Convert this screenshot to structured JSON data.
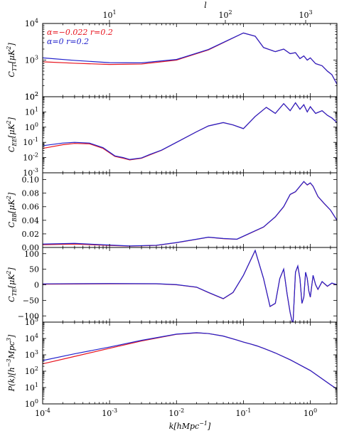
{
  "colors": {
    "red": "#e8141e",
    "blue": "#2222cc"
  },
  "top_axis": {
    "label": "l",
    "ticks": [
      {
        "base": "10",
        "exp": "1",
        "value": 10
      },
      {
        "base": "10",
        "exp": "2",
        "value": 100
      },
      {
        "base": "10",
        "exp": "3",
        "value": 1000
      }
    ]
  },
  "legend": [
    {
      "text": "α=−0.022 r=0.2",
      "color": "#e8141e"
    },
    {
      "text": "α=0 r=0.2",
      "color": "#2222cc"
    }
  ],
  "chart_data": [
    {
      "type": "line",
      "panel": "TT",
      "ylabel": "C_TT[μK²]",
      "yscale": "log",
      "ylim": [
        100,
        10000
      ],
      "xlim": [
        0.0001,
        2.5
      ],
      "x": [
        0.0001,
        0.0003,
        0.001,
        0.003,
        0.01,
        0.03,
        0.06,
        0.1,
        0.15,
        0.2,
        0.3,
        0.4,
        0.5,
        0.6,
        0.7,
        0.8,
        0.9,
        1.0,
        1.2,
        1.5,
        1.8,
        2.1,
        2.5
      ],
      "series": [
        {
          "color": "#e8141e",
          "values": [
            900,
            820,
            760,
            780,
            1000,
            1900,
            3500,
            5500,
            4500,
            2200,
            1700,
            2000,
            1500,
            1600,
            1100,
            1300,
            1000,
            1150,
            800,
            700,
            500,
            400,
            220
          ]
        },
        {
          "color": "#2222cc",
          "values": [
            1150,
            980,
            850,
            840,
            1040,
            1950,
            3550,
            5500,
            4500,
            2200,
            1700,
            2000,
            1500,
            1600,
            1100,
            1300,
            1000,
            1150,
            800,
            700,
            500,
            400,
            220
          ]
        }
      ],
      "ticks": [
        {
          "base": "10",
          "exp": "2",
          "value": 100
        },
        {
          "base": "10",
          "exp": "3",
          "value": 1000
        },
        {
          "base": "10",
          "exp": "4",
          "value": 10000
        }
      ]
    },
    {
      "type": "line",
      "panel": "EE",
      "ylabel": "C_EE[μK²]",
      "yscale": "log",
      "ylim": [
        0.001,
        100
      ],
      "xlim": [
        0.0001,
        2.5
      ],
      "x": [
        0.0001,
        0.0002,
        0.0003,
        0.0005,
        0.0008,
        0.0012,
        0.0016,
        0.002,
        0.003,
        0.004,
        0.006,
        0.01,
        0.02,
        0.03,
        0.05,
        0.07,
        0.1,
        0.15,
        0.22,
        0.3,
        0.4,
        0.5,
        0.6,
        0.7,
        0.8,
        0.9,
        1.0,
        1.2,
        1.5,
        1.8,
        2.1,
        2.5
      ],
      "series": [
        {
          "color": "#e8141e",
          "values": [
            0.04,
            0.07,
            0.085,
            0.08,
            0.04,
            0.012,
            0.009,
            0.007,
            0.009,
            0.015,
            0.03,
            0.1,
            0.5,
            1.2,
            2.0,
            1.4,
            0.8,
            5,
            20,
            8,
            35,
            12,
            40,
            15,
            30,
            10,
            22,
            8,
            12,
            6,
            4,
            2
          ]
        },
        {
          "color": "#2222cc",
          "values": [
            0.06,
            0.09,
            0.1,
            0.09,
            0.045,
            0.013,
            0.01,
            0.0075,
            0.0095,
            0.016,
            0.031,
            0.1,
            0.5,
            1.2,
            2.0,
            1.4,
            0.8,
            5,
            20,
            8,
            35,
            12,
            40,
            15,
            30,
            10,
            22,
            8,
            12,
            6,
            4,
            2
          ]
        }
      ],
      "ticks": [
        {
          "base": "10",
          "exp": "-3",
          "value": 0.001
        },
        {
          "base": "10",
          "exp": "-2",
          "value": 0.01
        },
        {
          "base": "10",
          "exp": "-1",
          "value": 0.1
        },
        {
          "base": "10",
          "exp": "0",
          "value": 1
        },
        {
          "base": "10",
          "exp": "1",
          "value": 10
        },
        {
          "base": "10",
          "exp": "2",
          "value": 100
        }
      ]
    },
    {
      "type": "line",
      "panel": "BB",
      "ylabel": "C_BB[μK²]",
      "yscale": "linear",
      "ylim": [
        0.0,
        0.11
      ],
      "xlim": [
        0.0001,
        2.5
      ],
      "x": [
        0.0001,
        0.0003,
        0.001,
        0.002,
        0.005,
        0.01,
        0.02,
        0.03,
        0.05,
        0.08,
        0.12,
        0.2,
        0.3,
        0.4,
        0.5,
        0.6,
        0.7,
        0.8,
        0.9,
        1.0,
        1.1,
        1.3,
        1.6,
        2.0,
        2.5
      ],
      "series": [
        {
          "color": "#e8141e",
          "values": [
            0.004,
            0.005,
            0.003,
            0.002,
            0.003,
            0.007,
            0.012,
            0.015,
            0.013,
            0.012,
            0.02,
            0.03,
            0.045,
            0.06,
            0.078,
            0.082,
            0.09,
            0.097,
            0.092,
            0.095,
            0.09,
            0.075,
            0.065,
            0.055,
            0.04
          ]
        },
        {
          "color": "#2222cc",
          "values": [
            0.005,
            0.006,
            0.0035,
            0.0022,
            0.0032,
            0.0072,
            0.0122,
            0.0152,
            0.0132,
            0.0122,
            0.0202,
            0.0302,
            0.0452,
            0.0602,
            0.0782,
            0.0822,
            0.0902,
            0.0972,
            0.0922,
            0.0952,
            0.0902,
            0.0752,
            0.0652,
            0.0552,
            0.0402
          ]
        }
      ],
      "ticks": [
        {
          "label": "0.00",
          "value": 0.0
        },
        {
          "label": "0.02",
          "value": 0.02
        },
        {
          "label": "0.04",
          "value": 0.04
        },
        {
          "label": "0.06",
          "value": 0.06
        },
        {
          "label": "0.08",
          "value": 0.08
        },
        {
          "label": "0.10",
          "value": 0.1
        }
      ]
    },
    {
      "type": "line",
      "panel": "TE",
      "ylabel": "C_TE[μK²]",
      "yscale": "linear",
      "ylim": [
        -120,
        120
      ],
      "xlim": [
        0.0001,
        2.5
      ],
      "x": [
        0.0001,
        0.001,
        0.005,
        0.01,
        0.02,
        0.03,
        0.05,
        0.07,
        0.1,
        0.15,
        0.2,
        0.25,
        0.3,
        0.35,
        0.4,
        0.45,
        0.5,
        0.55,
        0.6,
        0.65,
        0.7,
        0.75,
        0.8,
        0.85,
        0.9,
        0.95,
        1.0,
        1.1,
        1.2,
        1.3,
        1.5,
        1.8,
        2.1,
        2.5
      ],
      "series": [
        {
          "color": "#e8141e",
          "values": [
            2,
            3,
            3,
            0,
            -8,
            -25,
            -45,
            -25,
            30,
            110,
            20,
            -70,
            -60,
            20,
            50,
            -30,
            -90,
            -130,
            40,
            60,
            20,
            -60,
            -40,
            40,
            20,
            -20,
            -40,
            30,
            0,
            -15,
            10,
            -5,
            5,
            0
          ]
        },
        {
          "color": "#2222cc",
          "values": [
            3,
            4,
            3.5,
            0.5,
            -7.5,
            -24.5,
            -44.5,
            -24.5,
            30.5,
            110.5,
            20.5,
            -69.5,
            -59.5,
            20.5,
            50.5,
            -29.5,
            -89.5,
            -129.5,
            40.5,
            60.5,
            20.5,
            -59.5,
            -39.5,
            40.5,
            20.5,
            -19.5,
            -39.5,
            30.5,
            0.5,
            -14.5,
            10.5,
            -4.5,
            5.5,
            0.5
          ]
        }
      ],
      "ticks": [
        {
          "label": "−100",
          "value": -100
        },
        {
          "label": "−50",
          "value": -50
        },
        {
          "label": "0",
          "value": 0
        },
        {
          "label": "50",
          "value": 50
        },
        {
          "label": "100",
          "value": 100
        }
      ]
    },
    {
      "type": "line",
      "panel": "Pk",
      "ylabel": "P(k)[h⁻³Mpc³]",
      "yscale": "log",
      "ylim": [
        1,
        100000
      ],
      "xlim": [
        0.0001,
        2.5
      ],
      "xlabel": "k[hMpc⁻¹]",
      "x": [
        0.0001,
        0.0003,
        0.001,
        0.003,
        0.01,
        0.02,
        0.03,
        0.05,
        0.08,
        0.1,
        0.13,
        0.16,
        0.2,
        0.3,
        0.5,
        1.0,
        2.0,
        2.5
      ],
      "series": [
        {
          "color": "#e8141e",
          "values": [
            280,
            800,
            2500,
            7000,
            18000,
            22000,
            20000,
            14000,
            8000,
            6000,
            4500,
            3500,
            2500,
            1300,
            500,
            110,
            15,
            8
          ]
        },
        {
          "color": "#2222cc",
          "values": [
            450,
            1150,
            3000,
            7700,
            18500,
            22500,
            20000,
            14000,
            8000,
            6000,
            4500,
            3500,
            2500,
            1300,
            500,
            110,
            15,
            8
          ]
        }
      ],
      "ticks": [
        {
          "base": "10",
          "exp": "0",
          "value": 1
        },
        {
          "base": "10",
          "exp": "1",
          "value": 10
        },
        {
          "base": "10",
          "exp": "2",
          "value": 100
        },
        {
          "base": "10",
          "exp": "3",
          "value": 1000
        },
        {
          "base": "10",
          "exp": "4",
          "value": 10000
        },
        {
          "base": "10",
          "exp": "5",
          "value": 100000
        }
      ]
    }
  ],
  "bottom_axis": {
    "ticks": [
      {
        "base": "10",
        "exp": "-4",
        "value": 0.0001
      },
      {
        "base": "10",
        "exp": "-3",
        "value": 0.001
      },
      {
        "base": "10",
        "exp": "-2",
        "value": 0.01
      },
      {
        "base": "10",
        "exp": "-1",
        "value": 0.1
      },
      {
        "base": "10",
        "exp": "0",
        "value": 1
      }
    ]
  },
  "ylabels": [
    {
      "main": "C",
      "sub": "TT",
      "rest": "[μK",
      "sup": "2",
      "end": "]"
    },
    {
      "main": "C",
      "sub": "EE",
      "rest": "[μK",
      "sup": "2",
      "end": "]"
    },
    {
      "main": "C",
      "sub": "BB",
      "rest": "[μK",
      "sup": "2",
      "end": "]"
    },
    {
      "main": "C",
      "sub": "TE",
      "rest": "[μK",
      "sup": "2",
      "end": "]"
    },
    {
      "main": "P(k)[h",
      "sup1": "−3",
      "mid": "Mpc",
      "sup": "3",
      "end": "]"
    }
  ],
  "xlabel": {
    "main": "k[hMpc",
    "sup": "−1",
    "end": "]"
  }
}
